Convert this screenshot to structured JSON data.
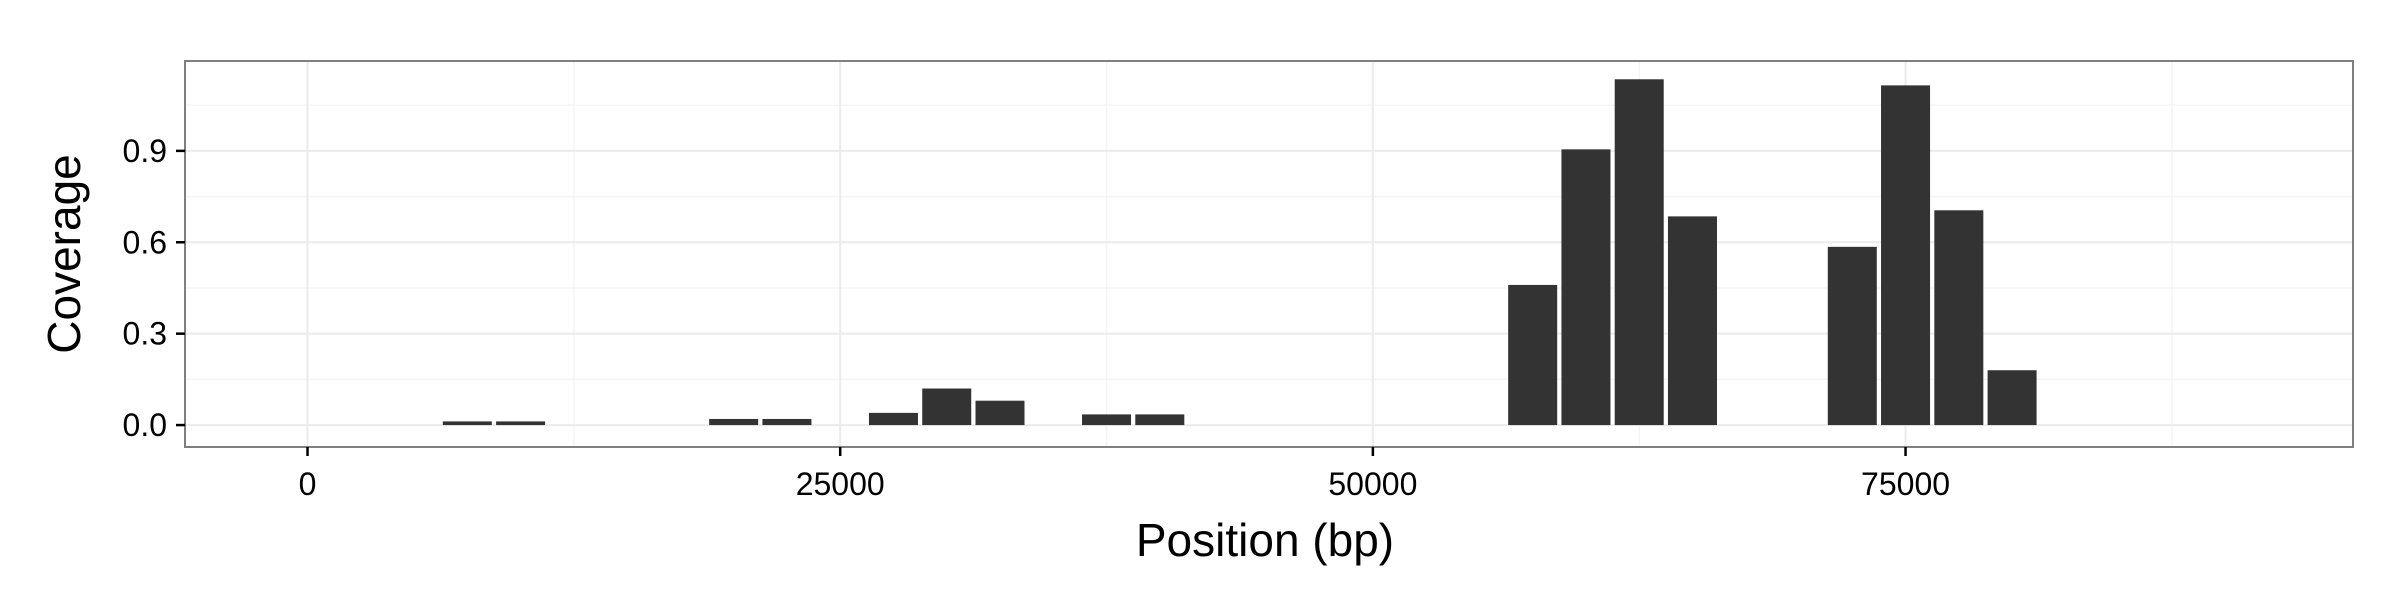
{
  "colors": {
    "bar": "#333333",
    "grid_major": "#ebebeb",
    "grid_minor": "#f5f5f5",
    "panel_border": "#7f7f7f",
    "tick": "#000000",
    "background": "#ffffff"
  },
  "chart_data": {
    "type": "bar",
    "xlabel": "Position (bp)",
    "ylabel": "Coverage",
    "xlim": [
      -5750,
      96000
    ],
    "ylim": [
      -0.072,
      1.195
    ],
    "x_ticks": [
      0,
      25000,
      50000,
      75000
    ],
    "x_tick_labels": [
      "0",
      "25000",
      "50000",
      "75000"
    ],
    "y_ticks": [
      0.0,
      0.3,
      0.6,
      0.9
    ],
    "y_tick_labels": [
      "0.0",
      "0.3",
      "0.6",
      "0.9"
    ],
    "grid": true,
    "bar_width": 2300,
    "bars": [
      {
        "x": 7500,
        "y": 0.012
      },
      {
        "x": 10000,
        "y": 0.012
      },
      {
        "x": 20000,
        "y": 0.02
      },
      {
        "x": 22500,
        "y": 0.02
      },
      {
        "x": 27500,
        "y": 0.04
      },
      {
        "x": 30000,
        "y": 0.12
      },
      {
        "x": 32500,
        "y": 0.08
      },
      {
        "x": 37500,
        "y": 0.035
      },
      {
        "x": 40000,
        "y": 0.035
      },
      {
        "x": 57500,
        "y": 0.46
      },
      {
        "x": 60000,
        "y": 0.905
      },
      {
        "x": 62500,
        "y": 1.135
      },
      {
        "x": 65000,
        "y": 0.685
      },
      {
        "x": 72500,
        "y": 0.585
      },
      {
        "x": 75000,
        "y": 1.115
      },
      {
        "x": 77500,
        "y": 0.705
      },
      {
        "x": 80000,
        "y": 0.18
      }
    ]
  }
}
